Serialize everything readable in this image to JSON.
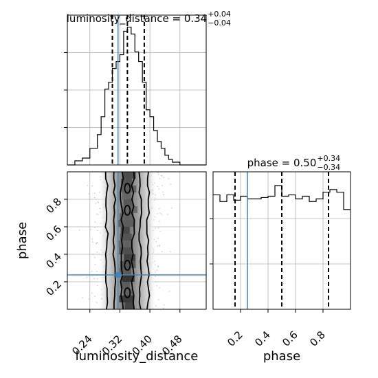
{
  "chart_data": {
    "type": "corner",
    "parameters": [
      "luminosity_distance",
      "phase"
    ],
    "titles": {
      "luminosity_distance": {
        "prefix": "luminosity_distance = ",
        "value": "0.34",
        "plus": "+0.04",
        "minus": "−0.04"
      },
      "phase": {
        "prefix": "phase = ",
        "value": "0.50",
        "plus": "+0.34",
        "minus": "−0.34"
      }
    },
    "axes": {
      "luminosity_distance": {
        "label": "luminosity_distance",
        "range": [
          0.18,
          0.55
        ],
        "ticks": [
          0.24,
          0.32,
          0.4,
          0.48
        ],
        "tick_labels": [
          "0.24",
          "0.32",
          "0.40",
          "0.48"
        ]
      },
      "phase": {
        "label": "phase",
        "range": [
          0.0,
          1.0
        ],
        "ticks": [
          0.2,
          0.4,
          0.6,
          0.8
        ],
        "tick_labels": [
          "0.2",
          "0.4",
          "0.6",
          "0.8"
        ]
      }
    },
    "truth": {
      "luminosity_distance": 0.315,
      "phase": 0.25,
      "color": "#4682b4"
    },
    "hist_luminosity_distance": {
      "bin_edges": [
        0.18,
        0.2,
        0.22,
        0.24,
        0.26,
        0.27,
        0.28,
        0.29,
        0.3,
        0.31,
        0.32,
        0.33,
        0.34,
        0.35,
        0.36,
        0.37,
        0.38,
        0.39,
        0.4,
        0.41,
        0.42,
        0.43,
        0.44,
        0.45,
        0.46,
        0.48,
        0.55
      ],
      "counts": [
        0,
        0.03,
        0.05,
        0.12,
        0.22,
        0.35,
        0.55,
        0.6,
        0.7,
        0.75,
        0.8,
        0.97,
        1.0,
        0.95,
        0.82,
        0.75,
        0.6,
        0.4,
        0.35,
        0.25,
        0.17,
        0.12,
        0.07,
        0.04,
        0.02,
        0
      ]
    },
    "quantiles_luminosity_distance": [
      0.3,
      0.34,
      0.385
    ],
    "hist_phase": {
      "bin_edges": [
        0.0,
        0.05,
        0.1,
        0.15,
        0.2,
        0.25,
        0.3,
        0.35,
        0.4,
        0.45,
        0.5,
        0.55,
        0.6,
        0.65,
        0.7,
        0.75,
        0.8,
        0.85,
        0.9,
        0.95,
        1.0
      ],
      "counts": [
        0.86,
        0.81,
        0.86,
        0.82,
        0.85,
        0.83,
        0.83,
        0.84,
        0.85,
        0.93,
        0.85,
        0.86,
        0.83,
        0.85,
        0.81,
        0.83,
        0.88,
        0.9,
        0.88,
        0.75
      ]
    },
    "quantiles_phase": [
      0.16,
      0.5,
      0.84
    ],
    "grid": true
  }
}
